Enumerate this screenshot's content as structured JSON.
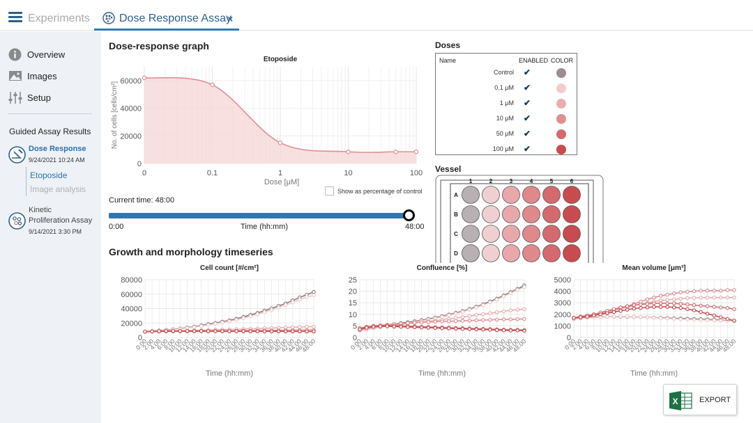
{
  "topbar": {
    "experiments_label": "Experiments",
    "tab_label": "Dose Response Assay",
    "close_symbol": "×"
  },
  "sidebar": {
    "items": [
      {
        "label": "Overview",
        "icon": "info-icon"
      },
      {
        "label": "Images",
        "icon": "image-icon"
      },
      {
        "label": "Setup",
        "icon": "sliders-icon"
      }
    ],
    "guided_title": "Guided Assay Results",
    "assays": [
      {
        "title": "Dose Response",
        "date": "9/24/2021 10:24 AM",
        "subitems": [
          "Etoposide",
          "Image analysis"
        ]
      },
      {
        "title_lines": [
          "Kinetic",
          "Proliferation Assay"
        ],
        "date": "9/14/2021 3:30 PM"
      }
    ]
  },
  "dose_response": {
    "heading": "Dose-response graph",
    "show_pct_label": "Show as percentage of control",
    "current_time_label": "Current time: 48:00",
    "slider": {
      "start": "0:00",
      "end": "48:00",
      "axis_label": "Time (hh:mm)",
      "position_fraction": 1.0
    }
  },
  "doses": {
    "heading": "Doses",
    "columns": [
      "Name",
      "ENABLED",
      "COLOR"
    ],
    "rows": [
      {
        "name": "Control",
        "enabled": "✔",
        "color": "#9b8e92"
      },
      {
        "name": "0.1 μM",
        "enabled": "✔",
        "color": "#f2cccd"
      },
      {
        "name": "1 μM",
        "enabled": "✔",
        "color": "#eaaeb0"
      },
      {
        "name": "10 μM",
        "enabled": "✔",
        "color": "#e18e91"
      },
      {
        "name": "50 μM",
        "enabled": "✔",
        "color": "#d6696d"
      },
      {
        "name": "100 μM",
        "enabled": "✔",
        "color": "#c84b50"
      }
    ]
  },
  "vessel": {
    "heading": "Vessel",
    "col_labels": [
      "1",
      "2",
      "3",
      "4",
      "5",
      "6"
    ],
    "row_labels": [
      "A",
      "B",
      "C",
      "D"
    ],
    "col_colors": [
      "#b8b0b2",
      "#f0cfd0",
      "#e8a8aa",
      "#df898c",
      "#d56a6e",
      "#c84b50"
    ]
  },
  "timeseries": {
    "heading": "Growth and morphology timeseries"
  },
  "export_label": "EXPORT",
  "chart_data": [
    {
      "type": "line",
      "title": "Etoposide",
      "xlabel": "Dose [μM]",
      "ylabel": "No. of cells [cells/cm²]",
      "xscale": "log",
      "xlim": [
        0.01,
        100
      ],
      "ylim": [
        0,
        70000
      ],
      "x_tick_labels": [
        "0",
        "0.1",
        "1",
        "10",
        "100"
      ],
      "yticks": [
        0,
        20000,
        40000,
        60000
      ],
      "series": [
        {
          "name": "Etoposide",
          "x": [
            0.01,
            0.1,
            1,
            10,
            50,
            100
          ],
          "y": [
            62000,
            57000,
            15000,
            8500,
            8500,
            8500
          ]
        }
      ]
    },
    {
      "type": "line",
      "title": "Cell count [#/cm²]",
      "xlabel": "Time (hh:mm)",
      "ylim": [
        0,
        80000
      ],
      "yticks": [
        0,
        20000,
        40000,
        60000,
        80000
      ],
      "x_tick_labels": [
        "0:00",
        "2:00",
        "4:00",
        "6:00",
        "8:00",
        "10:00",
        "12:00",
        "14:00",
        "16:00",
        "18:00",
        "20:00",
        "22:00",
        "24:00",
        "26:00",
        "28:00",
        "30:00",
        "32:00",
        "34:00",
        "36:00",
        "38:00",
        "40:00",
        "42:00",
        "44:00",
        "46:00",
        "48:00"
      ],
      "series": [
        {
          "name": "Control",
          "color": "#7f7579",
          "values": [
            8000,
            8800,
            9600,
            10400,
            11200,
            12400,
            13600,
            15000,
            16600,
            18400,
            20000,
            21800,
            23600,
            25800,
            28400,
            31200,
            34000,
            37000,
            40200,
            43600,
            47000,
            51200,
            55400,
            59200,
            63000
          ]
        },
        {
          "name": "0.1 μM",
          "color": "#f0c6c8",
          "values": [
            7800,
            8500,
            9200,
            10000,
            10800,
            11900,
            13000,
            14300,
            15800,
            17400,
            19000,
            20600,
            22400,
            24400,
            26800,
            29400,
            32000,
            35000,
            38000,
            41400,
            44800,
            48600,
            52400,
            55800,
            58500
          ]
        },
        {
          "name": "1 μM",
          "color": "#e8aaad",
          "values": [
            8000,
            8300,
            8500,
            8800,
            9000,
            9300,
            9500,
            9800,
            10000,
            10300,
            10500,
            10800,
            11000,
            11300,
            11600,
            11900,
            12200,
            12600,
            13000,
            13400,
            13800,
            14100,
            14400,
            14700,
            15000
          ]
        },
        {
          "name": "10 μM",
          "color": "#dd8a8d",
          "values": [
            8000,
            8100,
            8200,
            8300,
            8400,
            8500,
            8600,
            8700,
            8800,
            8900,
            9000,
            9100,
            9200,
            9300,
            9400,
            9500,
            9600,
            9700,
            9800,
            9900,
            10000,
            10100,
            10200,
            10300,
            10400
          ]
        },
        {
          "name": "50 μM",
          "color": "#d06a6e",
          "values": [
            8000,
            8200,
            8400,
            8500,
            8600,
            8600,
            8600,
            8600,
            8600,
            8500,
            8500,
            8500,
            8500,
            8500,
            8400,
            8400,
            8400,
            8400,
            8400,
            8400,
            8400,
            8300,
            8300,
            8300,
            8300
          ]
        },
        {
          "name": "100 μM",
          "color": "#c2474c",
          "values": [
            8000,
            8300,
            8600,
            8800,
            8900,
            8900,
            8900,
            8800,
            8800,
            8700,
            8700,
            8600,
            8600,
            8600,
            8500,
            8500,
            8500,
            8400,
            8400,
            8400,
            8400,
            8300,
            8300,
            8300,
            8300
          ]
        }
      ]
    },
    {
      "type": "line",
      "title": "Confluence [%]",
      "xlabel": "Time (hh:mm)",
      "ylim": [
        0,
        25
      ],
      "yticks": [
        0,
        5,
        10,
        15,
        20,
        25
      ],
      "x_tick_labels": [
        "0:00",
        "2:00",
        "4:00",
        "6:00",
        "8:00",
        "10:00",
        "12:00",
        "14:00",
        "16:00",
        "18:00",
        "20:00",
        "22:00",
        "24:00",
        "26:00",
        "28:00",
        "30:00",
        "32:00",
        "34:00",
        "36:00",
        "38:00",
        "40:00",
        "42:00",
        "44:00",
        "46:00",
        "48:00"
      ],
      "series": [
        {
          "name": "Control",
          "color": "#7f7579",
          "values": [
            3.0,
            3.8,
            4.5,
            5.0,
            5.4,
            5.8,
            6.2,
            6.6,
            7.0,
            7.5,
            8.0,
            8.6,
            9.2,
            9.9,
            10.6,
            11.4,
            12.3,
            13.3,
            14.4,
            15.6,
            16.8,
            18.2,
            19.6,
            21.0,
            22.5
          ]
        },
        {
          "name": "0.1 μM",
          "color": "#f0c6c8",
          "values": [
            3.2,
            3.8,
            4.3,
            4.7,
            5.1,
            5.5,
            5.9,
            6.3,
            6.7,
            7.2,
            7.7,
            8.3,
            8.9,
            9.6,
            10.3,
            11.1,
            12.0,
            13.0,
            14.0,
            15.2,
            16.4,
            17.8,
            19.2,
            20.6,
            21.8
          ]
        },
        {
          "name": "1 μM",
          "color": "#e8aaad",
          "values": [
            3.0,
            3.5,
            4.0,
            4.5,
            4.9,
            5.3,
            5.6,
            6.0,
            6.3,
            6.6,
            7.0,
            7.3,
            7.6,
            8.0,
            8.4,
            8.8,
            9.2,
            9.7,
            10.1,
            10.5,
            10.9,
            11.3,
            11.7,
            12.0,
            12.2
          ]
        },
        {
          "name": "10 μM",
          "color": "#dd8a8d",
          "values": [
            3.5,
            4.2,
            4.8,
            5.2,
            5.5,
            5.8,
            6.0,
            6.2,
            6.4,
            6.5,
            6.7,
            6.8,
            6.9,
            7.0,
            7.1,
            7.2,
            7.3,
            7.4,
            7.5,
            7.6,
            7.7,
            7.8,
            7.8,
            7.9,
            8.0
          ]
        },
        {
          "name": "50 μM",
          "color": "#d06a6e",
          "values": [
            4.0,
            4.6,
            5.0,
            5.2,
            5.2,
            5.1,
            5.0,
            4.9,
            4.8,
            4.6,
            4.5,
            4.4,
            4.3,
            4.2,
            4.1,
            4.0,
            3.9,
            3.8,
            3.7,
            3.6,
            3.5,
            3.4,
            3.3,
            3.3,
            3.2
          ]
        },
        {
          "name": "100 μM",
          "color": "#c2474c",
          "values": [
            3.5,
            4.2,
            4.6,
            4.8,
            4.8,
            4.7,
            4.6,
            4.5,
            4.4,
            4.3,
            4.2,
            4.1,
            4.0,
            3.9,
            3.8,
            3.7,
            3.6,
            3.5,
            3.4,
            3.3,
            3.2,
            3.1,
            3.0,
            3.0,
            2.9
          ]
        }
      ]
    },
    {
      "type": "line",
      "title": "Mean volume [μm³]",
      "xlabel": "Time (hh:mm)",
      "ylim": [
        0,
        5000
      ],
      "yticks": [
        0,
        1000,
        2000,
        3000,
        4000,
        5000
      ],
      "x_tick_labels": [
        "0:00",
        "2:00",
        "4:00",
        "6:00",
        "8:00",
        "10:00",
        "12:00",
        "14:00",
        "16:00",
        "18:00",
        "20:00",
        "22:00",
        "24:00",
        "26:00",
        "28:00",
        "30:00",
        "32:00",
        "34:00",
        "36:00",
        "38:00",
        "40:00",
        "42:00",
        "44:00",
        "46:00",
        "48:00"
      ],
      "series": [
        {
          "name": "Control",
          "color": "#7f7579",
          "values": [
            1700,
            1720,
            1740,
            1760,
            1780,
            1800,
            1800,
            1800,
            1790,
            1780,
            1760,
            1740,
            1720,
            1700,
            1680,
            1660,
            1640,
            1620,
            1600,
            1580,
            1560,
            1540,
            1500,
            1470,
            1440
          ]
        },
        {
          "name": "0.1 μM",
          "color": "#f0c6c8",
          "values": [
            1600,
            1640,
            1680,
            1720,
            1760,
            1790,
            1810,
            1820,
            1810,
            1790,
            1760,
            1730,
            1700,
            1670,
            1640,
            1610,
            1580,
            1560,
            1540,
            1520,
            1500,
            1480,
            1460,
            1440,
            1420
          ]
        },
        {
          "name": "1 μM",
          "color": "#e8aaad",
          "values": [
            1600,
            1700,
            1800,
            1900,
            2000,
            2150,
            2300,
            2450,
            2600,
            2750,
            2900,
            3000,
            3100,
            3200,
            3250,
            3300,
            3350,
            3400,
            3420,
            3440,
            3450,
            3450,
            3450,
            3450,
            3450
          ]
        },
        {
          "name": "10 μM",
          "color": "#dd8a8d",
          "values": [
            1700,
            1800,
            1900,
            2000,
            2100,
            2250,
            2400,
            2550,
            2700,
            2900,
            3100,
            3300,
            3450,
            3600,
            3700,
            3800,
            3900,
            3950,
            4000,
            4050,
            4050,
            4050,
            4050,
            4100,
            4100
          ]
        },
        {
          "name": "50 μM",
          "color": "#d06a6e",
          "values": [
            1700,
            1800,
            1900,
            2000,
            2150,
            2300,
            2450,
            2600,
            2700,
            2800,
            2850,
            2900,
            2950,
            2950,
            2950,
            2950,
            2900,
            2850,
            2800,
            2750,
            2700,
            2650,
            2600,
            2550,
            2450
          ]
        },
        {
          "name": "100 μM",
          "color": "#c2474c",
          "values": [
            1700,
            1750,
            1800,
            1900,
            2000,
            2100,
            2200,
            2300,
            2400,
            2500,
            2550,
            2600,
            2650,
            2650,
            2650,
            2600,
            2550,
            2450,
            2350,
            2200,
            2050,
            1900,
            1750,
            1600,
            1450
          ]
        }
      ]
    }
  ]
}
